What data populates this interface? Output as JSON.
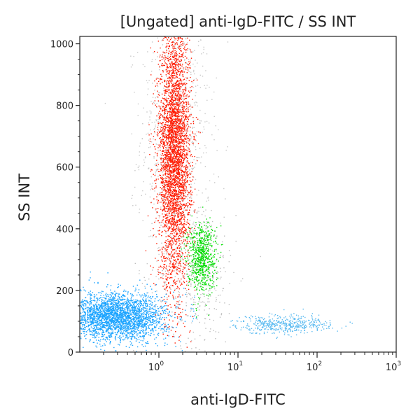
{
  "chart_data": {
    "type": "scatter",
    "title": "[Ungated] anti-IgD-FITC / SS INT",
    "xlabel": "anti-IgD-FITC",
    "ylabel": "SS INT",
    "x_scale": "log",
    "xlim": [
      0.1,
      1000
    ],
    "ylim": [
      0,
      1024
    ],
    "x_ticks": [
      {
        "value": 1,
        "base": "10",
        "exp": "0"
      },
      {
        "value": 10,
        "base": "10",
        "exp": "1"
      },
      {
        "value": 100,
        "base": "10",
        "exp": "2"
      },
      {
        "value": 1000,
        "base": "10",
        "exp": "3"
      }
    ],
    "y_ticks": [
      {
        "value": 0,
        "label": "0"
      },
      {
        "value": 200,
        "label": "200"
      },
      {
        "value": 400,
        "label": "400"
      },
      {
        "value": 600,
        "label": "600"
      },
      {
        "value": 800,
        "label": "800"
      },
      {
        "value": 1000,
        "label": "1000"
      }
    ],
    "grid": false,
    "clusters": [
      {
        "color": "#c8c8c8",
        "center_x": 1.6,
        "center_y": 700,
        "spread_logx": 0.22,
        "spread_y": 230,
        "count": 900
      },
      {
        "color": "#bdbdbd",
        "center_x": 3.0,
        "center_y": 260,
        "spread_logx": 0.25,
        "spread_y": 120,
        "count": 400
      },
      {
        "color": "#ff1a00",
        "center_x": 1.55,
        "center_y": 640,
        "spread_logx": 0.1,
        "spread_y": 210,
        "count": 3800
      },
      {
        "color": "#00dd00",
        "center_x": 3.4,
        "center_y": 310,
        "spread_logx": 0.09,
        "spread_y": 55,
        "count": 700
      },
      {
        "color": "#1aa3ff",
        "center_x": 0.3,
        "center_y": 115,
        "spread_logx": 0.3,
        "spread_y": 38,
        "count": 2800
      },
      {
        "color": "#55b8f0",
        "center_x": 38,
        "center_y": 92,
        "spread_logx": 0.3,
        "spread_y": 15,
        "count": 450
      }
    ]
  }
}
